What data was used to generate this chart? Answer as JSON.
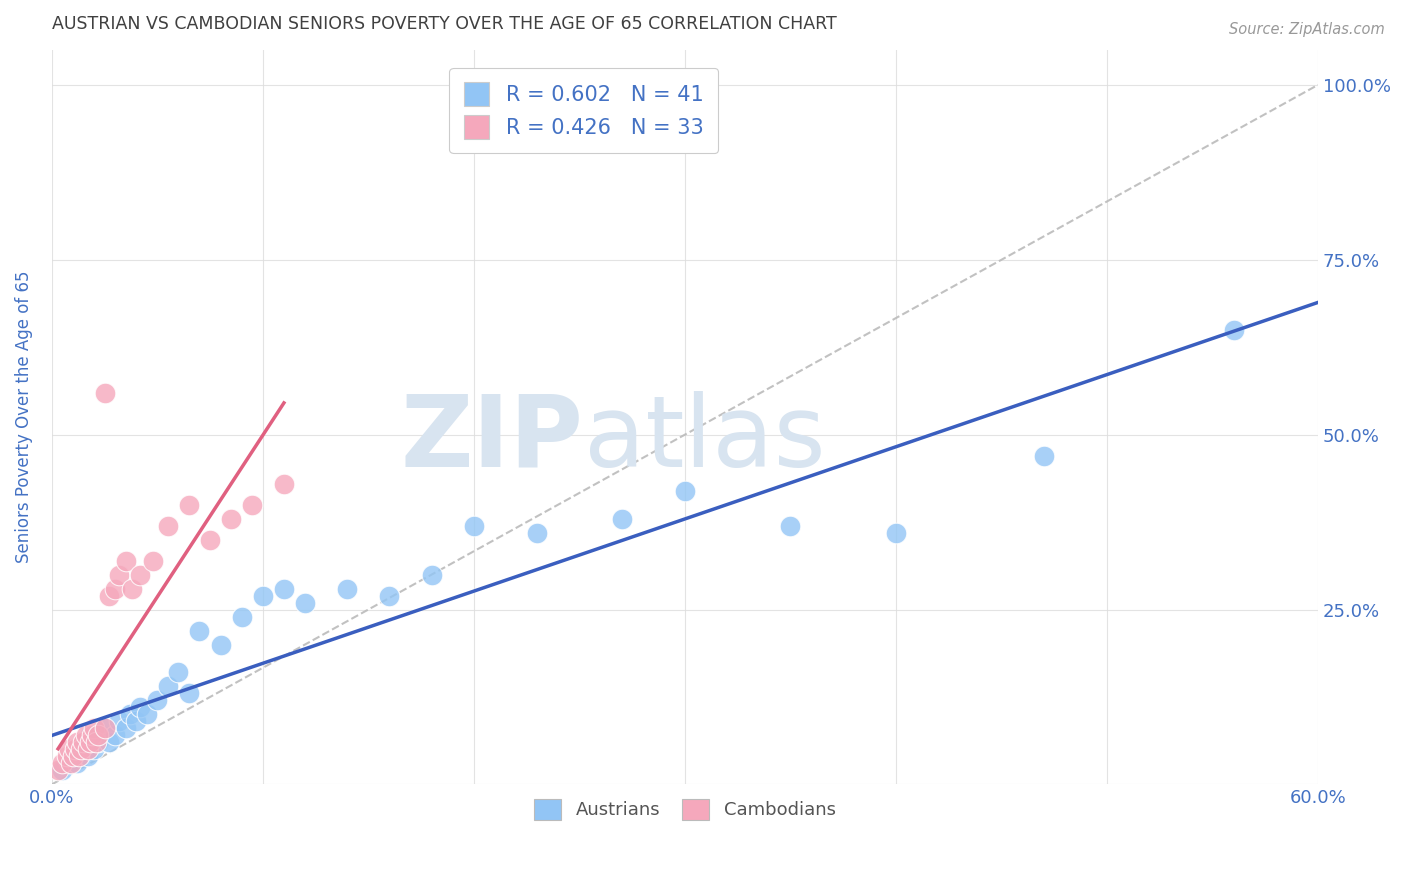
{
  "title": "AUSTRIAN VS CAMBODIAN SENIORS POVERTY OVER THE AGE OF 65 CORRELATION CHART",
  "source": "Source: ZipAtlas.com",
  "ylabel": "Seniors Poverty Over the Age of 65",
  "xlim": [
    0.0,
    0.6
  ],
  "ylim": [
    0.0,
    1.05
  ],
  "x_ticks": [
    0.0,
    0.1,
    0.2,
    0.3,
    0.4,
    0.5,
    0.6
  ],
  "x_tick_labels": [
    "0.0%",
    "",
    "",
    "",
    "",
    "",
    "60.0%"
  ],
  "y_ticks": [
    0.0,
    0.25,
    0.5,
    0.75,
    1.0
  ],
  "y_tick_labels": [
    "",
    "25.0%",
    "50.0%",
    "75.0%",
    "100.0%"
  ],
  "austrians_R": 0.602,
  "austrians_N": 41,
  "cambodians_R": 0.426,
  "cambodians_N": 33,
  "austrians_color": "#92C5F5",
  "cambodians_color": "#F5A8BC",
  "regression_line_austria_color": "#3A5EBF",
  "regression_line_cambodia_color": "#E06080",
  "diagonal_line_color": "#BBBBBB",
  "background_color": "#FFFFFF",
  "grid_color": "#DDDDDD",
  "title_color": "#404040",
  "legend_text_color": "#4472C4",
  "axis_label_color": "#4472C4",
  "austrians_x": [
    0.005,
    0.008,
    0.01,
    0.012,
    0.015,
    0.015,
    0.017,
    0.018,
    0.02,
    0.022,
    0.023,
    0.025,
    0.027,
    0.03,
    0.032,
    0.035,
    0.037,
    0.04,
    0.042,
    0.045,
    0.05,
    0.055,
    0.06,
    0.065,
    0.07,
    0.08,
    0.09,
    0.1,
    0.11,
    0.12,
    0.14,
    0.16,
    0.18,
    0.2,
    0.23,
    0.27,
    0.3,
    0.35,
    0.4,
    0.47,
    0.56
  ],
  "austrians_y": [
    0.02,
    0.03,
    0.04,
    0.03,
    0.05,
    0.06,
    0.04,
    0.07,
    0.05,
    0.06,
    0.07,
    0.08,
    0.06,
    0.07,
    0.09,
    0.08,
    0.1,
    0.09,
    0.11,
    0.1,
    0.12,
    0.14,
    0.16,
    0.13,
    0.22,
    0.2,
    0.24,
    0.27,
    0.28,
    0.26,
    0.28,
    0.27,
    0.3,
    0.37,
    0.36,
    0.38,
    0.42,
    0.37,
    0.36,
    0.47,
    0.65
  ],
  "cambodians_x": [
    0.003,
    0.005,
    0.007,
    0.008,
    0.009,
    0.01,
    0.011,
    0.012,
    0.013,
    0.014,
    0.015,
    0.016,
    0.017,
    0.018,
    0.019,
    0.02,
    0.021,
    0.022,
    0.025,
    0.027,
    0.03,
    0.032,
    0.035,
    0.038,
    0.042,
    0.048,
    0.055,
    0.065,
    0.075,
    0.085,
    0.095,
    0.11,
    0.025
  ],
  "cambodians_y": [
    0.02,
    0.03,
    0.04,
    0.05,
    0.03,
    0.04,
    0.05,
    0.06,
    0.04,
    0.05,
    0.06,
    0.07,
    0.05,
    0.06,
    0.07,
    0.08,
    0.06,
    0.07,
    0.08,
    0.27,
    0.28,
    0.3,
    0.32,
    0.28,
    0.3,
    0.32,
    0.37,
    0.4,
    0.35,
    0.38,
    0.4,
    0.43,
    0.56
  ],
  "watermark_text": "ZIPatlas",
  "watermark_color": "#D8E4F0"
}
